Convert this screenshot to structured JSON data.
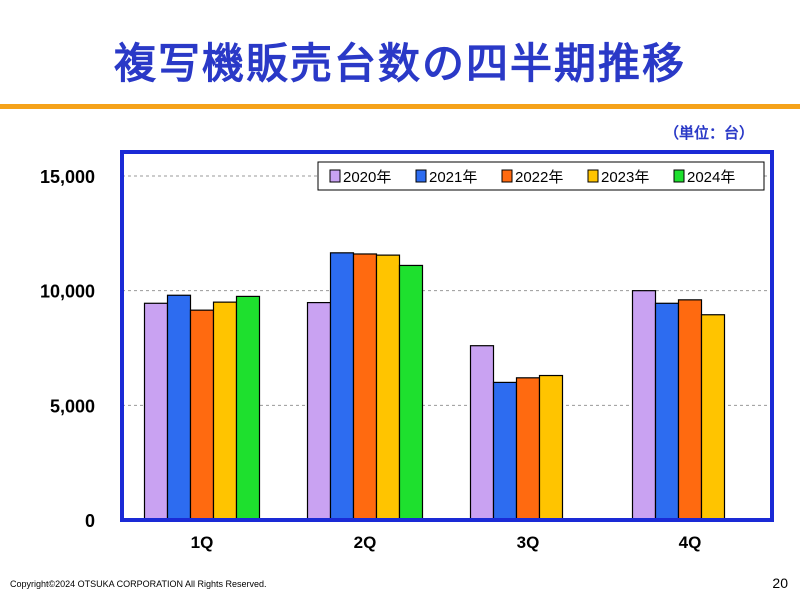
{
  "title": "複写機販売台数の四半期推移",
  "unit_note": "（単位：台）",
  "footer": {
    "copyright": "Copyright©2024 OTSUKA CORPORATION All Rights Reserved.",
    "page_number": "20"
  },
  "colors": {
    "title": "#2a39c7",
    "accent_rule": "#f5a21a",
    "plot_border": "#1a2ad6"
  },
  "chart_data": {
    "type": "bar",
    "categories": [
      "1Q",
      "2Q",
      "3Q",
      "4Q"
    ],
    "yticks": [
      "0",
      "5,000",
      "10,000",
      "15,000"
    ],
    "ylim": [
      0,
      15000
    ],
    "grid": true,
    "legend_position": "top-right",
    "series": [
      {
        "name": "2020年",
        "color": "#c9a2f2",
        "values": [
          9450,
          9480,
          7600,
          10000
        ]
      },
      {
        "name": "2021年",
        "color": "#2d6cf0",
        "values": [
          9800,
          11650,
          6000,
          9450
        ]
      },
      {
        "name": "2022年",
        "color": "#ff6a10",
        "values": [
          9150,
          11600,
          6200,
          9600
        ]
      },
      {
        "name": "2023年",
        "color": "#ffc400",
        "values": [
          9500,
          11550,
          6300,
          8950
        ]
      },
      {
        "name": "2024年",
        "color": "#1ee02e",
        "values": [
          9750,
          11100,
          null,
          null
        ]
      }
    ]
  }
}
